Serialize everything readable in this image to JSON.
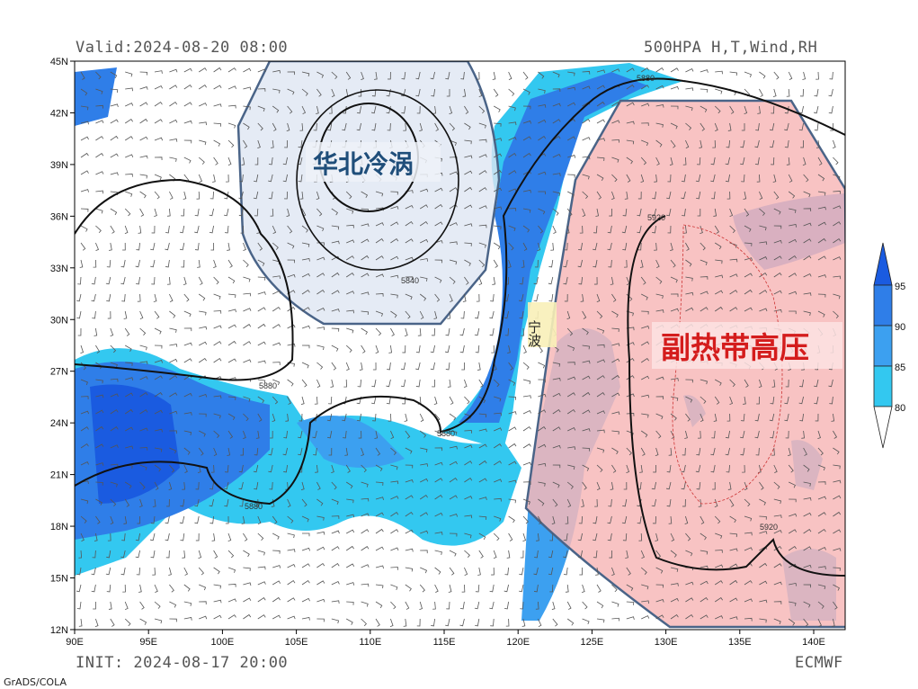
{
  "header": {
    "valid_time": "Valid:2024-08-20 08:00",
    "product": "500HPA H,T,Wind,RH"
  },
  "footer": {
    "init_time": "INIT: 2024-08-17 20:00",
    "model": "ECMWF",
    "software": "GrADS/COLA"
  },
  "map": {
    "lon_ticks": [
      "90E",
      "95E",
      "100E",
      "105E",
      "110E",
      "115E",
      "120E",
      "125E",
      "130E",
      "135E",
      "140E"
    ],
    "lat_ticks": [
      "45N",
      "42N",
      "39N",
      "36N",
      "33N",
      "30N",
      "27N",
      "24N",
      "21N",
      "18N",
      "15N",
      "12N"
    ],
    "contour_labels": [
      "5880",
      "5880",
      "5880",
      "5880",
      "5920",
      "5920",
      "5840"
    ],
    "annotations": {
      "cold_vortex": "华北冷涡",
      "subtropical_high": "副热带高压",
      "city": "宁波"
    },
    "colors": {
      "cold_vortex_fill": "#dfe6f2",
      "subtropical_high_fill": "#f7b9b9",
      "region_outline": "#4a6488",
      "cold_vortex_text": "#1f4e7a",
      "subtropical_high_text": "#d41c1c"
    }
  },
  "legend": {
    "title": "RH",
    "levels": [
      "95",
      "90",
      "85",
      "80"
    ],
    "colors": [
      "#1a5be0",
      "#2f7ee8",
      "#3ca0f0",
      "#33c8f0"
    ]
  }
}
